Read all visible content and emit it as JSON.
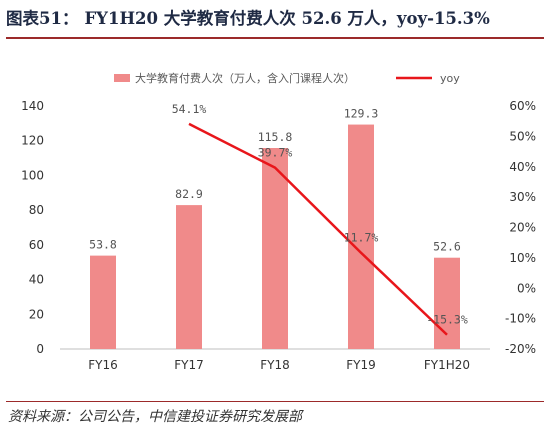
{
  "header": {
    "figure_no": "图表51：",
    "title": "FY1H20 大学教育付费人次 52.6 万人，yoy-15.3%"
  },
  "footer": {
    "source": "资料来源：公司公告，中信建投证券研究发展部"
  },
  "chart_data": {
    "type": "bar",
    "categories": [
      "FY16",
      "FY17",
      "FY18",
      "FY19",
      "FY1H20"
    ],
    "series": [
      {
        "name": "大学教育付费人次（万人，含入门课程人次）",
        "type": "bar",
        "axis": "left",
        "color": "#f08a8a",
        "values": [
          53.8,
          82.9,
          115.8,
          129.3,
          52.6
        ],
        "labels": [
          "53.8",
          "82.9",
          "115.8",
          "129.3",
          "52.6"
        ]
      },
      {
        "name": "yoy",
        "type": "line",
        "axis": "right",
        "color": "#e8161b",
        "values": [
          null,
          54.1,
          39.7,
          11.7,
          -15.3
        ],
        "labels": [
          "",
          "54.1%",
          "39.7%",
          "11.7%",
          "-15.3%"
        ]
      }
    ],
    "y_left": {
      "ylim": [
        0,
        140
      ],
      "ticks": [
        "0",
        "20",
        "40",
        "60",
        "80",
        "100",
        "120",
        "140"
      ]
    },
    "y_right": {
      "ylim": [
        -20,
        60
      ],
      "ticks": [
        "-20%",
        "-10%",
        "0%",
        "10%",
        "20%",
        "30%",
        "40%",
        "50%",
        "60%"
      ]
    },
    "legend_position": "top",
    "grid": false
  }
}
